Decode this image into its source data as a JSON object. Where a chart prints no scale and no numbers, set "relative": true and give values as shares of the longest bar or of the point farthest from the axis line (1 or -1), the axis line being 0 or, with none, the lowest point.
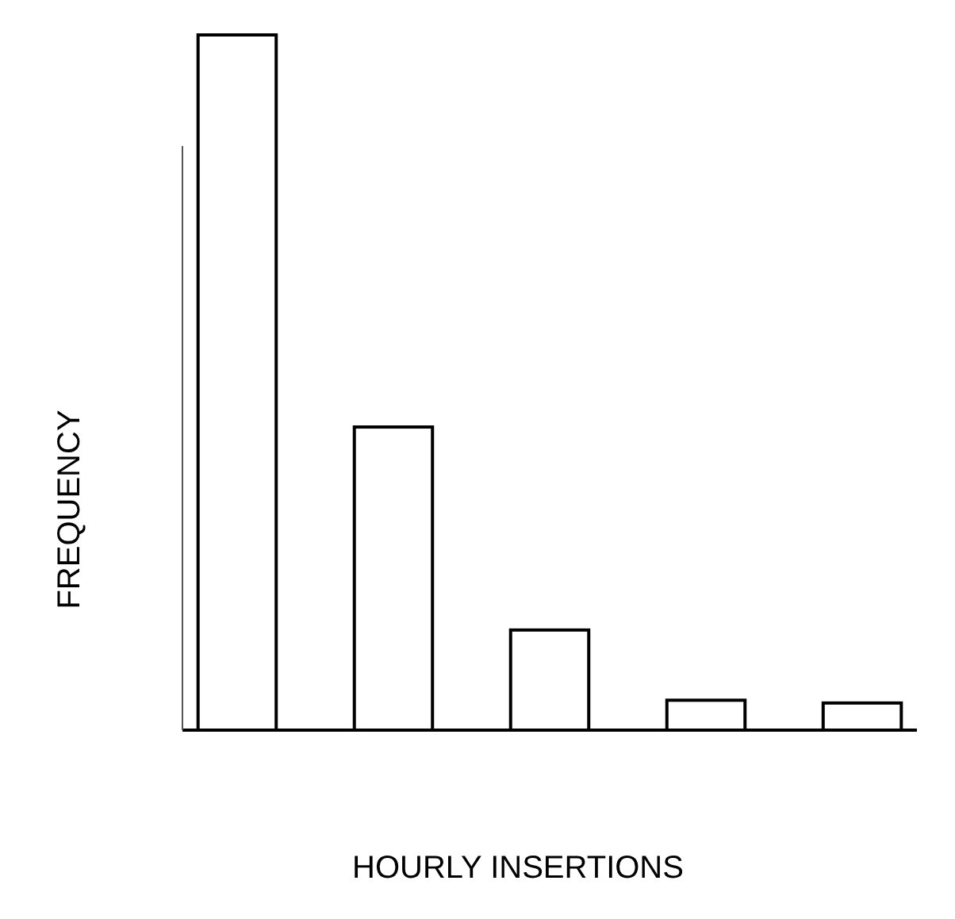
{
  "chart_data": {
    "type": "bar",
    "relative": true,
    "xlabel": "HOURLY INSERTIONS",
    "ylabel": "FREQUENCY",
    "categories": [
      null,
      null,
      null,
      null,
      null
    ],
    "values": [
      1,
      0.436,
      0.144,
      0.043,
      0.039
    ],
    "color": "#ffffff"
  }
}
